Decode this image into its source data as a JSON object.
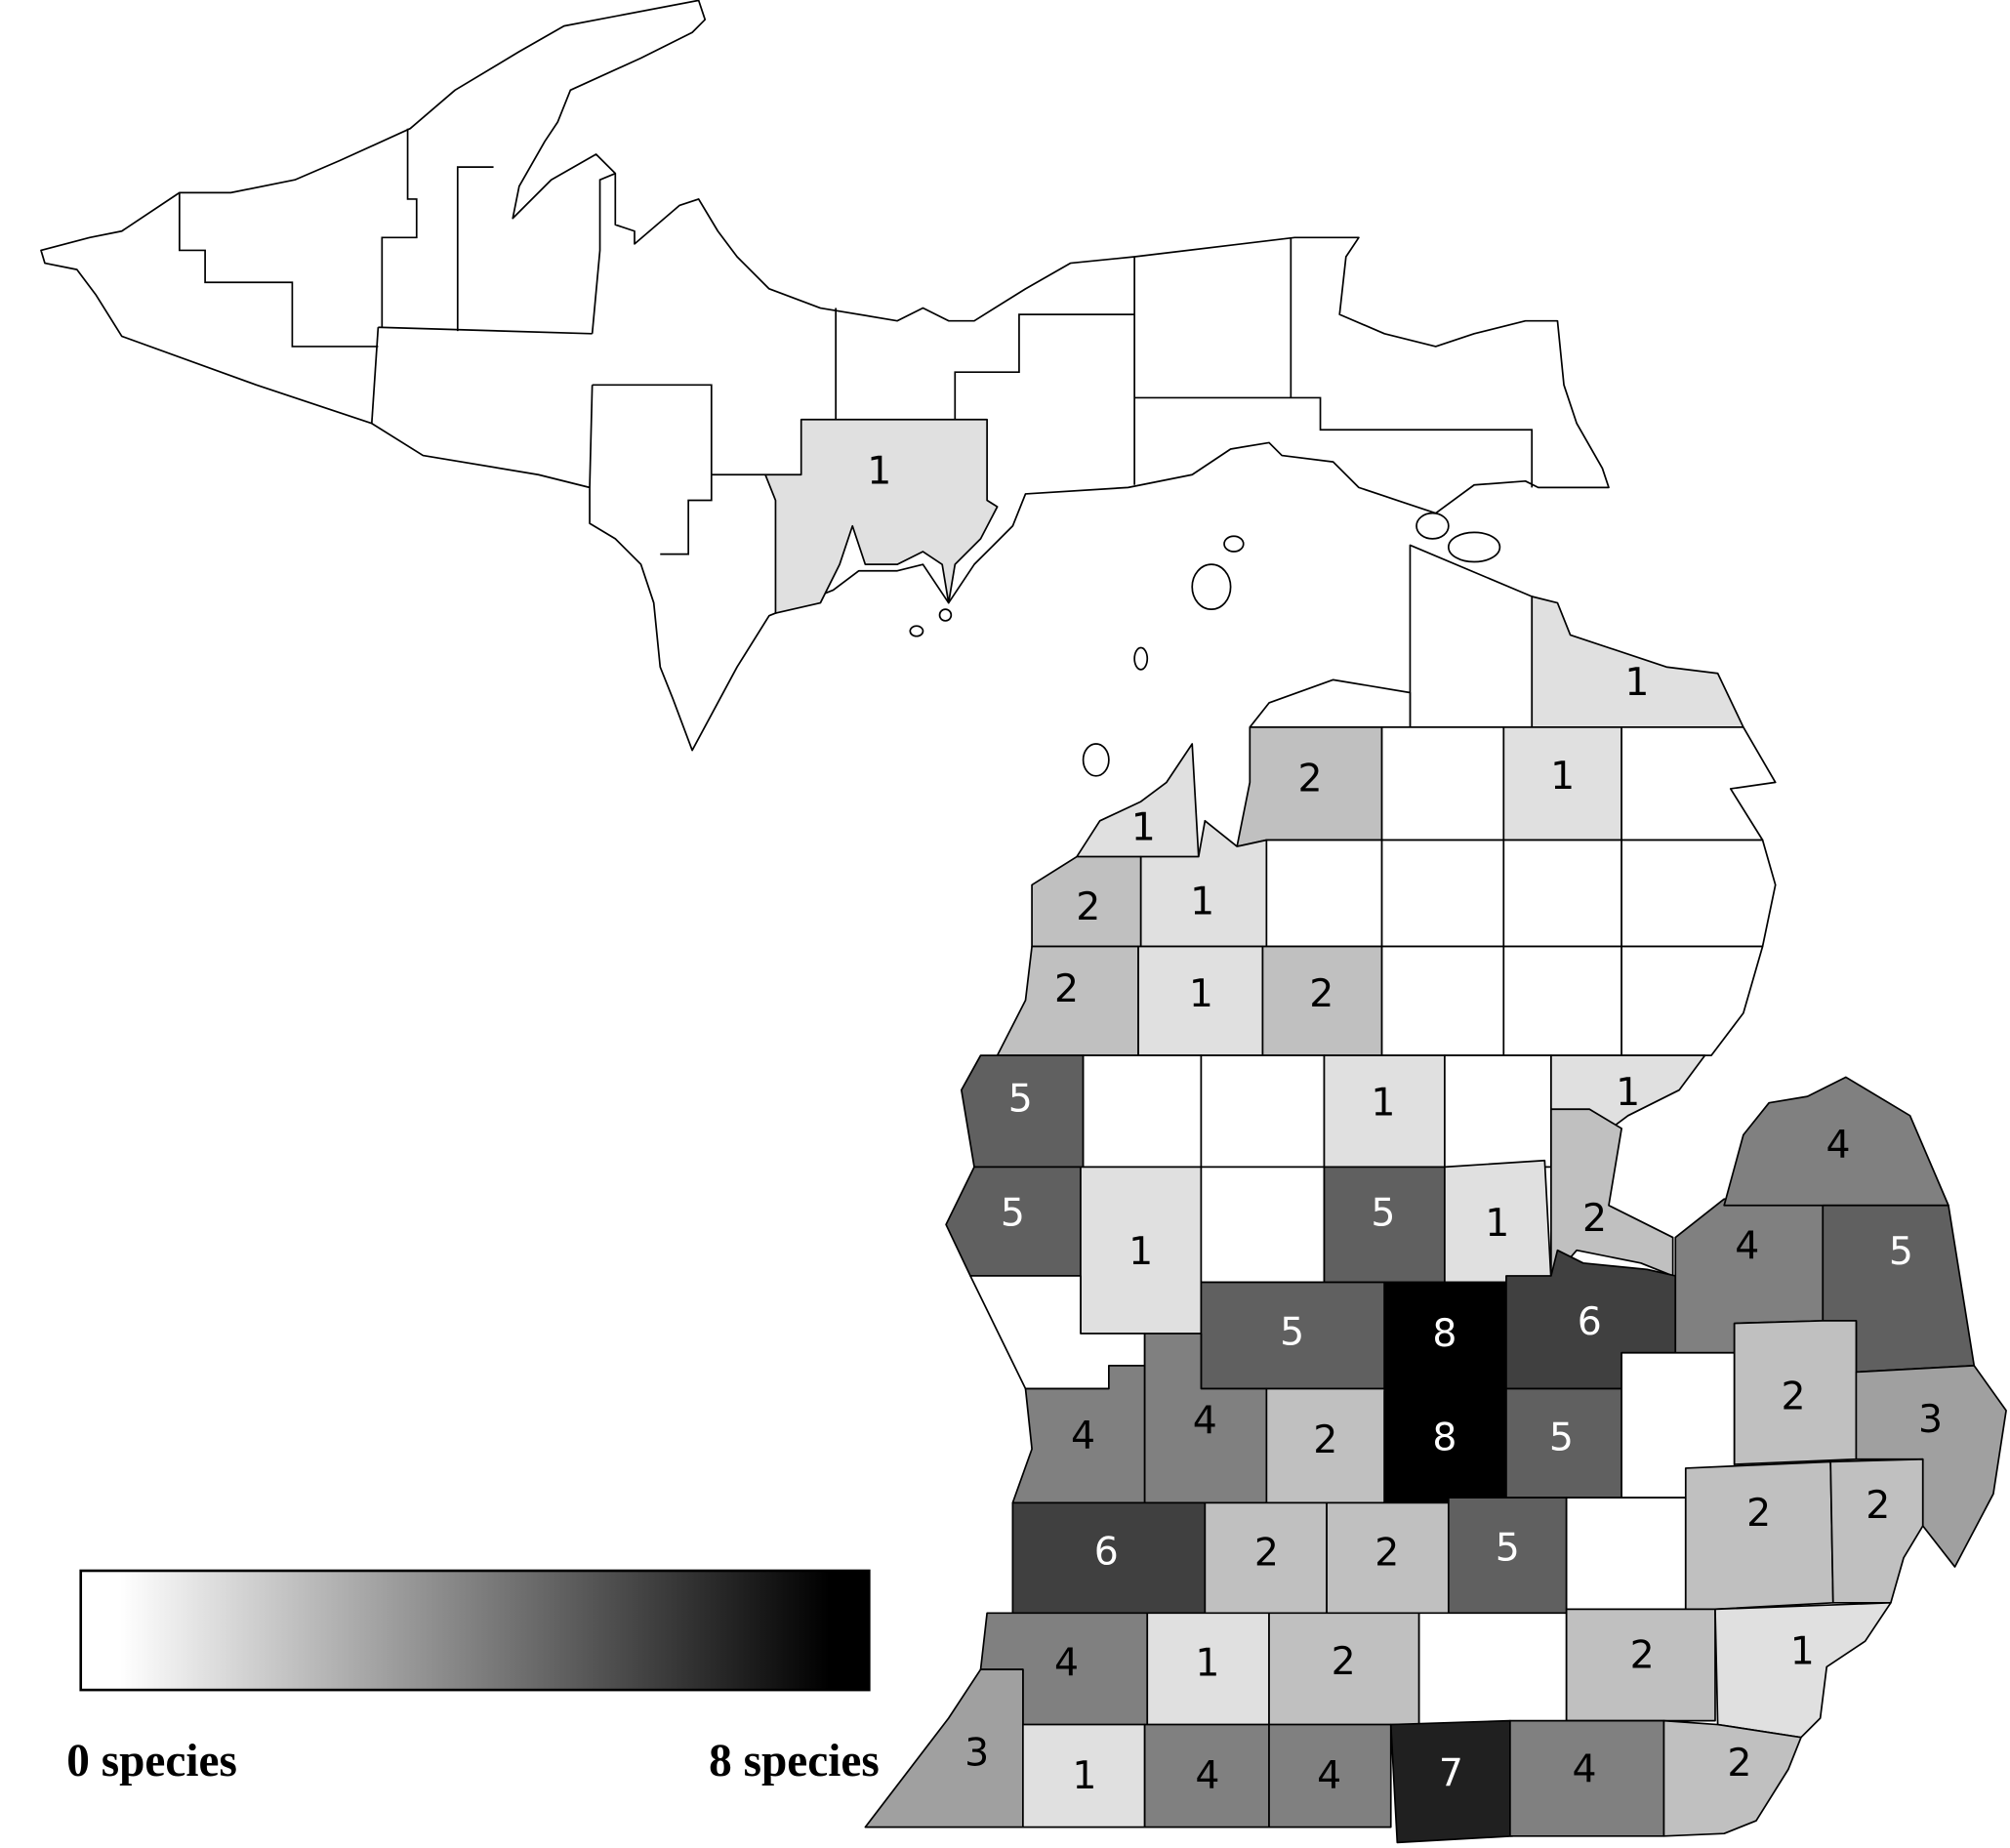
{
  "legend": {
    "min_label": "0 species",
    "max_label": "8 species",
    "min_value": 0,
    "max_value": 8,
    "min_color": "#ffffff",
    "max_color": "#000000"
  },
  "fill_scale": [
    "#ffffff",
    "#e0e0e0",
    "#c0c0c0",
    "#a0a0a0",
    "#808080",
    "#606060",
    "#404040",
    "#202020",
    "#000000"
  ],
  "counties": [
    {
      "value": 1
    },
    {
      "value": 0
    },
    {
      "value": 0
    },
    {
      "value": 2
    },
    {
      "value": 0
    },
    {
      "value": 1
    },
    {
      "value": 0
    },
    {
      "value": 1
    },
    {
      "value": 2
    },
    {
      "value": 1
    },
    {
      "value": 0
    },
    {
      "value": 0
    },
    {
      "value": 0
    },
    {
      "value": 0
    },
    {
      "value": 2
    },
    {
      "value": 1
    },
    {
      "value": 2
    },
    {
      "value": 0
    },
    {
      "value": 0
    },
    {
      "value": 0
    },
    {
      "value": 5
    },
    {
      "value": 0
    },
    {
      "value": 0
    },
    {
      "value": 1
    },
    {
      "value": 0
    },
    {
      "value": 1
    },
    {
      "value": 5
    },
    {
      "value": 1
    },
    {
      "value": 0
    },
    {
      "value": 5
    },
    {
      "value": 1
    },
    {
      "value": 2
    },
    {
      "value": 0
    },
    {
      "value": 5
    },
    {
      "value": 8
    },
    {
      "value": 6
    },
    {
      "value": 4
    },
    {
      "value": 4
    },
    {
      "value": 5
    },
    {
      "value": 4
    },
    {
      "value": 4
    },
    {
      "value": 2
    },
    {
      "value": 8
    },
    {
      "value": 5
    },
    {
      "value": 0
    },
    {
      "value": 2
    },
    {
      "value": 3
    },
    {
      "value": 6
    },
    {
      "value": 2
    },
    {
      "value": 2
    },
    {
      "value": 5
    },
    {
      "value": 0
    },
    {
      "value": 2
    },
    {
      "value": 2
    },
    {
      "value": 4
    },
    {
      "value": 1
    },
    {
      "value": 2
    },
    {
      "value": 0
    },
    {
      "value": 2
    },
    {
      "value": 1
    },
    {
      "value": 3
    },
    {
      "value": 1
    },
    {
      "value": 4
    },
    {
      "value": 4
    },
    {
      "value": 7
    },
    {
      "value": 4
    },
    {
      "value": 2
    },
    {
      "value": 1
    }
  ]
}
